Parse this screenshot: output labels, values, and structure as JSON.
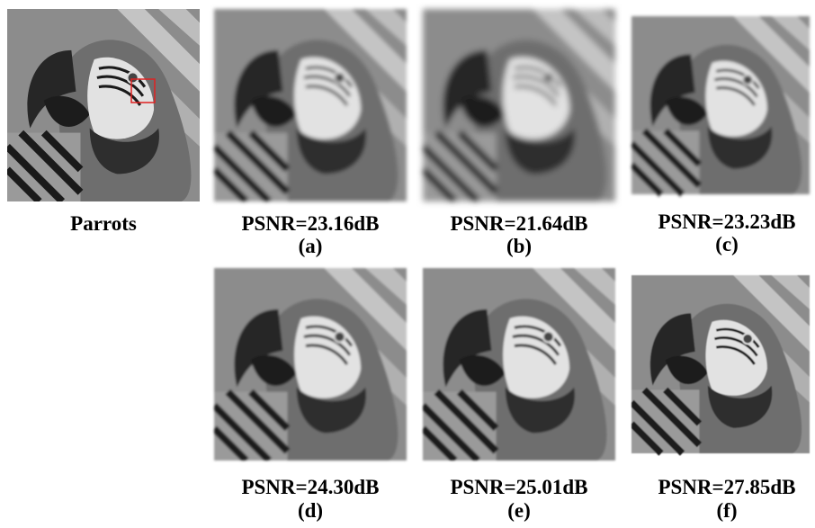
{
  "figure": {
    "panels": [
      {
        "caption": "Parrots"
      },
      {
        "caption": "PSNR=23.16dB",
        "label": "(a)"
      },
      {
        "caption": "PSNR=21.64dB",
        "label": "(b)"
      },
      {
        "caption": "PSNR=23.23dB",
        "label": "(c)"
      },
      {
        "caption": "PSNR=24.30dB",
        "label": "(d)"
      },
      {
        "caption": "PSNR=25.01dB",
        "label": "(e)"
      },
      {
        "caption": "PSNR=27.85dB",
        "label": "(f)"
      }
    ]
  }
}
